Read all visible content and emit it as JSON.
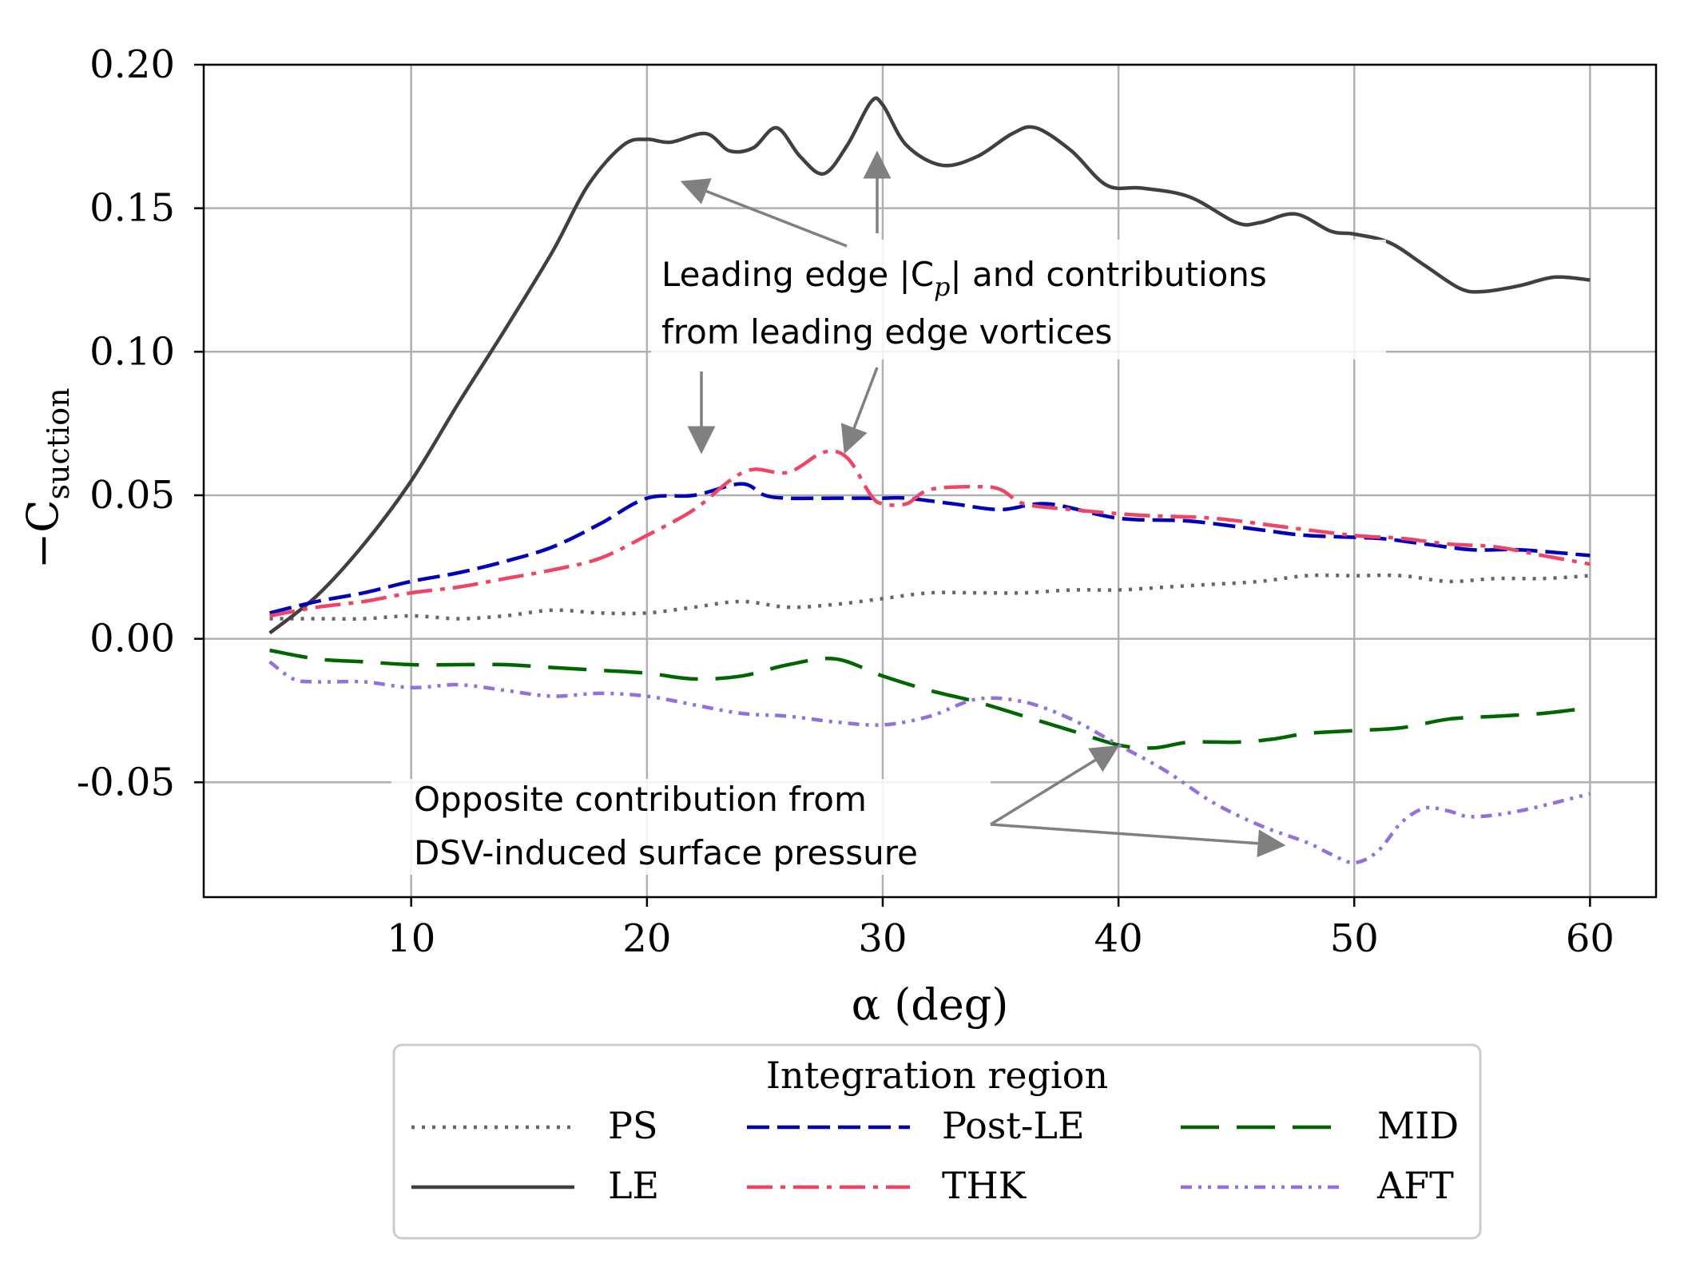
{
  "chart_data": {
    "type": "line",
    "title": "",
    "xlabel": "α (deg)",
    "ylabel_main": "−C",
    "ylabel_sub": "suction",
    "xlim": [
      1.2,
      62.8
    ],
    "ylim": [
      -0.09,
      0.2
    ],
    "xticks": [
      10,
      20,
      30,
      40,
      50,
      60
    ],
    "xtick_labels": [
      "10",
      "20",
      "30",
      "40",
      "50",
      "60"
    ],
    "yticks": [
      -0.05,
      0.0,
      0.05,
      0.1,
      0.15,
      0.2
    ],
    "ytick_labels": [
      "-0.05",
      "0.00",
      "0.05",
      "0.10",
      "0.15",
      "0.20"
    ],
    "grid": true,
    "legend": {
      "title": "Integration region",
      "placement": "below",
      "columns": 3
    },
    "series": [
      {
        "name": "PS",
        "color": "#666666",
        "style": "dotted",
        "points": [
          [
            4,
            0.007
          ],
          [
            6,
            0.007
          ],
          [
            8,
            0.007
          ],
          [
            10,
            0.008
          ],
          [
            12,
            0.007
          ],
          [
            14,
            0.008
          ],
          [
            16,
            0.01
          ],
          [
            18,
            0.009
          ],
          [
            20,
            0.009
          ],
          [
            22,
            0.011
          ],
          [
            24,
            0.013
          ],
          [
            26,
            0.011
          ],
          [
            28,
            0.012
          ],
          [
            30,
            0.014
          ],
          [
            32,
            0.016
          ],
          [
            34,
            0.016
          ],
          [
            36,
            0.016
          ],
          [
            38,
            0.017
          ],
          [
            40,
            0.017
          ],
          [
            42,
            0.018
          ],
          [
            44,
            0.019
          ],
          [
            46,
            0.02
          ],
          [
            48,
            0.022
          ],
          [
            50,
            0.022
          ],
          [
            52,
            0.022
          ],
          [
            54,
            0.02
          ],
          [
            56,
            0.021
          ],
          [
            58,
            0.021
          ],
          [
            60,
            0.022
          ]
        ]
      },
      {
        "name": "LE",
        "color": "#404040",
        "style": "solid",
        "points": [
          [
            4,
            0.002
          ],
          [
            6,
            0.015
          ],
          [
            8,
            0.033
          ],
          [
            10,
            0.055
          ],
          [
            12,
            0.082
          ],
          [
            14,
            0.108
          ],
          [
            16,
            0.135
          ],
          [
            17.5,
            0.158
          ],
          [
            19,
            0.172
          ],
          [
            20,
            0.174
          ],
          [
            21,
            0.173
          ],
          [
            22.5,
            0.176
          ],
          [
            23.5,
            0.17
          ],
          [
            24.5,
            0.171
          ],
          [
            25.5,
            0.178
          ],
          [
            26.5,
            0.168
          ],
          [
            27.5,
            0.162
          ],
          [
            28.5,
            0.172
          ],
          [
            29.5,
            0.187
          ],
          [
            30,
            0.186
          ],
          [
            31,
            0.172
          ],
          [
            32.5,
            0.165
          ],
          [
            34,
            0.168
          ],
          [
            35.5,
            0.176
          ],
          [
            36.5,
            0.178
          ],
          [
            38,
            0.17
          ],
          [
            39.5,
            0.158
          ],
          [
            41,
            0.157
          ],
          [
            43,
            0.154
          ],
          [
            45,
            0.145
          ],
          [
            46,
            0.145
          ],
          [
            47.5,
            0.148
          ],
          [
            49,
            0.142
          ],
          [
            50,
            0.141
          ],
          [
            51.5,
            0.138
          ],
          [
            53,
            0.13
          ],
          [
            54.5,
            0.122
          ],
          [
            55.5,
            0.121
          ],
          [
            57,
            0.123
          ],
          [
            58.5,
            0.126
          ],
          [
            60,
            0.125
          ]
        ]
      },
      {
        "name": "Post-LE",
        "color": "#0000bb",
        "style": "dashed",
        "points": [
          [
            4,
            0.009
          ],
          [
            6,
            0.013
          ],
          [
            8,
            0.016
          ],
          [
            10,
            0.02
          ],
          [
            12,
            0.023
          ],
          [
            14,
            0.027
          ],
          [
            16,
            0.032
          ],
          [
            18,
            0.04
          ],
          [
            20,
            0.049
          ],
          [
            22,
            0.05
          ],
          [
            24,
            0.054
          ],
          [
            25,
            0.05
          ],
          [
            26,
            0.049
          ],
          [
            28,
            0.049
          ],
          [
            30,
            0.049
          ],
          [
            31,
            0.049
          ],
          [
            33,
            0.047
          ],
          [
            35,
            0.045
          ],
          [
            37,
            0.047
          ],
          [
            40,
            0.042
          ],
          [
            43,
            0.041
          ],
          [
            46,
            0.038
          ],
          [
            48,
            0.036
          ],
          [
            51,
            0.035
          ],
          [
            53,
            0.033
          ],
          [
            55,
            0.031
          ],
          [
            57,
            0.031
          ],
          [
            60,
            0.029
          ]
        ]
      },
      {
        "name": "THK",
        "color": "#ee4466",
        "style": "dashdot",
        "points": [
          [
            4,
            0.008
          ],
          [
            6,
            0.011
          ],
          [
            8,
            0.013
          ],
          [
            10,
            0.016
          ],
          [
            12,
            0.018
          ],
          [
            14,
            0.021
          ],
          [
            16,
            0.024
          ],
          [
            18,
            0.028
          ],
          [
            20,
            0.036
          ],
          [
            22,
            0.045
          ],
          [
            23.5,
            0.055
          ],
          [
            24.5,
            0.059
          ],
          [
            26,
            0.058
          ],
          [
            27.5,
            0.065
          ],
          [
            28.5,
            0.063
          ],
          [
            29.5,
            0.05
          ],
          [
            30,
            0.047
          ],
          [
            31,
            0.047
          ],
          [
            32,
            0.052
          ],
          [
            34,
            0.053
          ],
          [
            35,
            0.052
          ],
          [
            36,
            0.047
          ],
          [
            38,
            0.045
          ],
          [
            41,
            0.043
          ],
          [
            44,
            0.042
          ],
          [
            47,
            0.039
          ],
          [
            50,
            0.036
          ],
          [
            52,
            0.035
          ],
          [
            54,
            0.033
          ],
          [
            56,
            0.032
          ],
          [
            58,
            0.029
          ],
          [
            60,
            0.026
          ]
        ]
      },
      {
        "name": "MID",
        "color": "#006600",
        "style": "longdash",
        "points": [
          [
            4,
            -0.004
          ],
          [
            6,
            -0.007
          ],
          [
            8,
            -0.008
          ],
          [
            10,
            -0.009
          ],
          [
            12,
            -0.009
          ],
          [
            14,
            -0.009
          ],
          [
            16,
            -0.01
          ],
          [
            18,
            -0.011
          ],
          [
            20,
            -0.012
          ],
          [
            22,
            -0.014
          ],
          [
            24,
            -0.013
          ],
          [
            26,
            -0.009
          ],
          [
            28,
            -0.007
          ],
          [
            30,
            -0.013
          ],
          [
            32,
            -0.018
          ],
          [
            34,
            -0.022
          ],
          [
            36,
            -0.027
          ],
          [
            38,
            -0.032
          ],
          [
            40,
            -0.037
          ],
          [
            41.5,
            -0.038
          ],
          [
            43,
            -0.036
          ],
          [
            45,
            -0.036
          ],
          [
            46.5,
            -0.035
          ],
          [
            48,
            -0.033
          ],
          [
            50,
            -0.032
          ],
          [
            52,
            -0.031
          ],
          [
            54,
            -0.028
          ],
          [
            56,
            -0.027
          ],
          [
            58,
            -0.026
          ],
          [
            60,
            -0.024
          ]
        ]
      },
      {
        "name": "AFT",
        "color": "#9370db",
        "style": "dashdotdot",
        "points": [
          [
            4,
            -0.008
          ],
          [
            5,
            -0.014
          ],
          [
            6,
            -0.015
          ],
          [
            8,
            -0.015
          ],
          [
            10,
            -0.017
          ],
          [
            12,
            -0.016
          ],
          [
            14,
            -0.018
          ],
          [
            16,
            -0.02
          ],
          [
            18,
            -0.019
          ],
          [
            20,
            -0.02
          ],
          [
            22,
            -0.023
          ],
          [
            24,
            -0.026
          ],
          [
            26,
            -0.027
          ],
          [
            28,
            -0.029
          ],
          [
            30,
            -0.03
          ],
          [
            32,
            -0.027
          ],
          [
            34,
            -0.021
          ],
          [
            36,
            -0.022
          ],
          [
            38,
            -0.028
          ],
          [
            40,
            -0.037
          ],
          [
            42,
            -0.046
          ],
          [
            44,
            -0.057
          ],
          [
            46,
            -0.065
          ],
          [
            48,
            -0.071
          ],
          [
            49,
            -0.075
          ],
          [
            50,
            -0.078
          ],
          [
            51,
            -0.074
          ],
          [
            52,
            -0.064
          ],
          [
            53,
            -0.059
          ],
          [
            54,
            -0.06
          ],
          [
            55,
            -0.062
          ],
          [
            57,
            -0.06
          ],
          [
            60,
            -0.054
          ]
        ]
      }
    ],
    "annotations": [
      {
        "lines": [
          "Leading edge |C",
          "from leading edge vortices"
        ],
        "cp_sub": "p",
        "cp_rest": "| and contributions"
      },
      {
        "lines": [
          "Opposite contribution from",
          "DSV-induced surface pressure"
        ]
      }
    ]
  }
}
